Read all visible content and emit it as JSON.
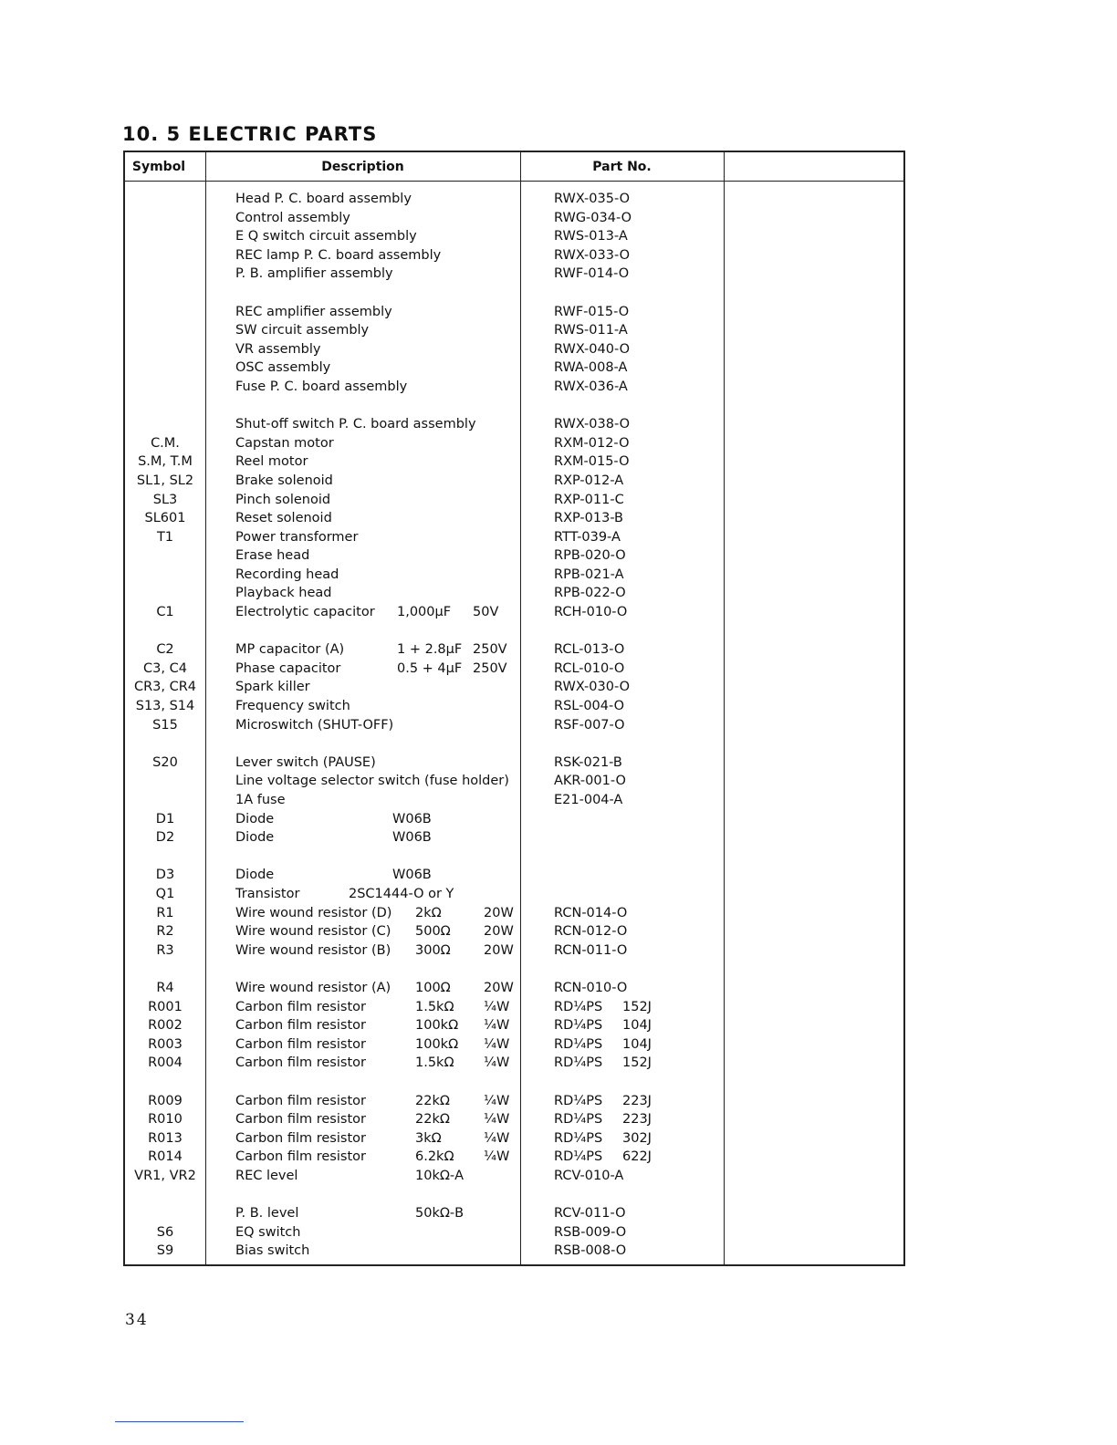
{
  "title": "10. 5  ELECTRIC PARTS",
  "page_number": "34",
  "headers": {
    "symbol": "Symbol",
    "description": "Description",
    "part_no": "Part No."
  },
  "rows": [
    {
      "s": "",
      "d": "Head P. C. board assembly",
      "v": "",
      "r": "",
      "p": "RWX-035-O",
      "p2": ""
    },
    {
      "s": "",
      "d": "Control assembly",
      "v": "",
      "r": "",
      "p": "RWG-034-O",
      "p2": ""
    },
    {
      "s": "",
      "d": "E Q switch circuit assembly",
      "v": "",
      "r": "",
      "p": "RWS-013-A",
      "p2": ""
    },
    {
      "s": "",
      "d": "REC lamp P. C. board assembly",
      "v": "",
      "r": "",
      "p": "RWX-033-O",
      "p2": ""
    },
    {
      "s": "",
      "d": "P. B. amplifier assembly",
      "v": "",
      "r": "",
      "p": "RWF-014-O",
      "p2": ""
    },
    null,
    {
      "s": "",
      "d": "REC amplifier assembly",
      "v": "",
      "r": "",
      "p": "RWF-015-O",
      "p2": ""
    },
    {
      "s": "",
      "d": "SW circuit assembly",
      "v": "",
      "r": "",
      "p": "RWS-011-A",
      "p2": ""
    },
    {
      "s": "",
      "d": "VR assembly",
      "v": "",
      "r": "",
      "p": "RWX-040-O",
      "p2": ""
    },
    {
      "s": "",
      "d": "OSC assembly",
      "v": "",
      "r": "",
      "p": "RWA-008-A",
      "p2": ""
    },
    {
      "s": "",
      "d": "Fuse P. C. board assembly",
      "v": "",
      "r": "",
      "p": "RWX-036-A",
      "p2": ""
    },
    null,
    {
      "s": "",
      "d": "Shut-off switch P. C. board assembly",
      "v": "",
      "r": "",
      "p": "RWX-038-O",
      "p2": ""
    },
    {
      "s": "C.M.",
      "d": "Capstan motor",
      "v": "",
      "r": "",
      "p": "RXM-012-O",
      "p2": ""
    },
    {
      "s": "S.M, T.M",
      "d": "Reel motor",
      "v": "",
      "r": "",
      "p": "RXM-015-O",
      "p2": ""
    },
    {
      "s": "SL1, SL2",
      "d": "Brake solenoid",
      "v": "",
      "r": "",
      "p": "RXP-012-A",
      "p2": ""
    },
    {
      "s": "SL3",
      "d": "Pinch solenoid",
      "v": "",
      "r": "",
      "p": "RXP-011-C",
      "p2": ""
    },
    {
      "s": "SL601",
      "d": "Reset solenoid",
      "v": "",
      "r": "",
      "p": "RXP-013-B",
      "p2": ""
    },
    {
      "s": "T1",
      "d": "Power transformer",
      "v": "",
      "r": "",
      "p": "RTT-039-A",
      "p2": ""
    },
    {
      "s": "",
      "d": "Erase head",
      "v": "",
      "r": "",
      "p": "RPB-020-O",
      "p2": ""
    },
    {
      "s": "",
      "d": "Recording head",
      "v": "",
      "r": "",
      "p": "RPB-021-A",
      "p2": ""
    },
    {
      "s": "",
      "d": "Playback head",
      "v": "",
      "r": "",
      "p": "RPB-022-O",
      "p2": ""
    },
    {
      "s": "C1",
      "d": "Electrolytic capacitor",
      "v": "1,000μF",
      "r": "50V",
      "p": "RCH-010-O",
      "p2": ""
    },
    null,
    {
      "s": "C2",
      "d": "MP capacitor (A)",
      "v": "1 + 2.8μF",
      "r": "250V",
      "p": "RCL-013-O",
      "p2": ""
    },
    {
      "s": "C3, C4",
      "d": "Phase capacitor",
      "v": "0.5 + 4μF",
      "r": "250V",
      "p": "RCL-010-O",
      "p2": ""
    },
    {
      "s": "CR3, CR4",
      "d": "Spark killer",
      "v": "",
      "r": "",
      "p": "RWX-030-O",
      "p2": ""
    },
    {
      "s": "S13, S14",
      "d": "Frequency switch",
      "v": "",
      "r": "",
      "p": "RSL-004-O",
      "p2": ""
    },
    {
      "s": "S15",
      "d": "Microswitch (SHUT-OFF)",
      "v": "",
      "r": "",
      "p": "RSF-007-O",
      "p2": ""
    },
    null,
    {
      "s": "S20",
      "d": "Lever switch (PAUSE)",
      "v": "",
      "r": "",
      "p": "RSK-021-B",
      "p2": ""
    },
    {
      "s": "",
      "d": "Line voltage selector switch (fuse holder)",
      "v": "",
      "r": "",
      "p": "AKR-001-O",
      "p2": ""
    },
    {
      "s": "",
      "d": "1A fuse",
      "v": "",
      "r": "",
      "p": "E21-004-A",
      "p2": ""
    },
    {
      "s": "D1",
      "d": "Diode",
      "v": "W06B",
      "r": "",
      "p": "",
      "p2": ""
    },
    {
      "s": "D2",
      "d": "Diode",
      "v": "W06B",
      "r": "",
      "p": "",
      "p2": ""
    },
    null,
    {
      "s": "D3",
      "d": "Diode",
      "v": "W06B",
      "r": "",
      "p": "",
      "p2": ""
    },
    {
      "s": "Q1",
      "d": "Transistor",
      "v": "2SC1444-O or Y",
      "r": "",
      "p": "",
      "p2": ""
    },
    {
      "s": "R1",
      "d": "Wire wound resistor (D)",
      "v": "2kΩ",
      "r": "20W",
      "p": "RCN-014-O",
      "p2": ""
    },
    {
      "s": "R2",
      "d": "Wire wound resistor (C)",
      "v": "500Ω",
      "r": "20W",
      "p": "RCN-012-O",
      "p2": ""
    },
    {
      "s": "R3",
      "d": "Wire wound resistor (B)",
      "v": "300Ω",
      "r": "20W",
      "p": "RCN-011-O",
      "p2": ""
    },
    null,
    {
      "s": "R4",
      "d": "Wire wound resistor (A)",
      "v": "100Ω",
      "r": "20W",
      "p": "RCN-010-O",
      "p2": ""
    },
    {
      "s": "R001",
      "d": "Carbon film resistor",
      "v": "1.5kΩ",
      "r": "¼W",
      "p": "RD¼PS",
      "p2": "152J"
    },
    {
      "s": "R002",
      "d": "Carbon film resistor",
      "v": "100kΩ",
      "r": "¼W",
      "p": "RD¼PS",
      "p2": "104J"
    },
    {
      "s": "R003",
      "d": "Carbon film resistor",
      "v": "100kΩ",
      "r": "¼W",
      "p": "RD¼PS",
      "p2": "104J"
    },
    {
      "s": "R004",
      "d": "Carbon film resistor",
      "v": "1.5kΩ",
      "r": "¼W",
      "p": "RD¼PS",
      "p2": "152J"
    },
    null,
    {
      "s": "R009",
      "d": "Carbon film resistor",
      "v": "22kΩ",
      "r": "¼W",
      "p": "RD¼PS",
      "p2": "223J"
    },
    {
      "s": "R010",
      "d": "Carbon film resistor",
      "v": "22kΩ",
      "r": "¼W",
      "p": "RD¼PS",
      "p2": "223J"
    },
    {
      "s": "R013",
      "d": "Carbon film resistor",
      "v": "3kΩ",
      "r": "¼W",
      "p": "RD¼PS",
      "p2": "302J"
    },
    {
      "s": "R014",
      "d": "Carbon film resistor",
      "v": "6.2kΩ",
      "r": "¼W",
      "p": "RD¼PS",
      "p2": "622J"
    },
    {
      "s": "VR1, VR2",
      "d": "REC level",
      "v": "10kΩ-A",
      "r": "",
      "p": "RCV-010-A",
      "p2": ""
    },
    null,
    {
      "s": "",
      "d": "P. B. level",
      "v": "50kΩ-B",
      "r": "",
      "p": "RCV-011-O",
      "p2": ""
    },
    {
      "s": "S6",
      "d": "EQ switch",
      "v": "",
      "r": "",
      "p": "RSB-009-O",
      "p2": ""
    },
    {
      "s": "S9",
      "d": "Bias switch",
      "v": "",
      "r": "",
      "p": "RSB-008-O",
      "p2": ""
    }
  ]
}
